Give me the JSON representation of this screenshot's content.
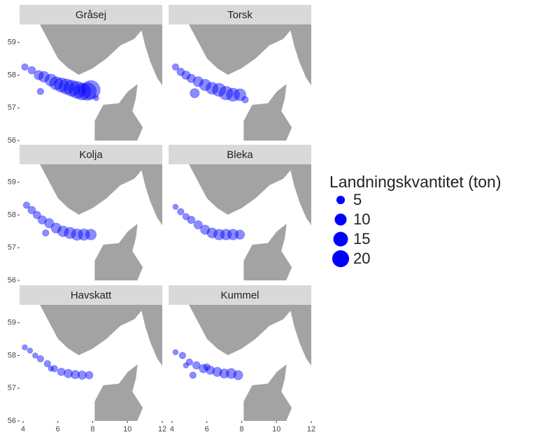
{
  "chart_data": [
    {
      "type": "scatter",
      "title": "Gråsej",
      "color": "#0000ff",
      "xlim": [
        3.8,
        12.0
      ],
      "ylim": [
        56,
        59.55
      ],
      "yticks": [
        56,
        57,
        58,
        59
      ],
      "x": [
        4.1,
        4.5,
        4.9,
        5.2,
        5.6,
        5.9,
        6.2,
        6.5,
        6.8,
        7.1,
        7.4,
        7.7,
        7.9,
        5.0,
        8.2
      ],
      "y": [
        58.25,
        58.15,
        58.0,
        57.95,
        57.85,
        57.75,
        57.7,
        57.65,
        57.6,
        57.55,
        57.5,
        57.5,
        57.55,
        57.5,
        57.3
      ],
      "sizes": [
        3,
        4,
        6,
        8,
        10,
        12,
        14,
        16,
        18,
        20,
        20,
        22,
        24,
        3,
        2
      ]
    },
    {
      "type": "scatter",
      "title": "Torsk",
      "color": "#0000ff",
      "xlim": [
        3.8,
        12.0
      ],
      "ylim": [
        56,
        59.55
      ],
      "x": [
        4.2,
        4.5,
        4.8,
        5.1,
        5.5,
        5.9,
        6.3,
        6.7,
        7.1,
        7.5,
        7.9,
        5.3,
        8.2
      ],
      "y": [
        58.25,
        58.1,
        58.0,
        57.9,
        57.8,
        57.7,
        57.6,
        57.55,
        57.45,
        57.4,
        57.4,
        57.45,
        57.25
      ],
      "sizes": [
        3,
        4,
        5,
        5,
        7,
        9,
        10,
        12,
        13,
        12,
        10,
        6,
        3
      ]
    },
    {
      "type": "scatter",
      "title": "Kolja",
      "color": "#0000ff",
      "xlim": [
        3.8,
        12.0
      ],
      "ylim": [
        56,
        59.55
      ],
      "yticks": [
        56,
        57,
        58,
        59
      ],
      "x": [
        4.2,
        4.5,
        4.8,
        5.1,
        5.5,
        5.9,
        6.3,
        6.7,
        7.1,
        7.5,
        7.9,
        5.3
      ],
      "y": [
        58.3,
        58.15,
        58.0,
        57.85,
        57.75,
        57.6,
        57.5,
        57.45,
        57.4,
        57.4,
        57.4,
        57.45
      ],
      "sizes": [
        3,
        4,
        4,
        5,
        6,
        7,
        8,
        9,
        9,
        9,
        8,
        3
      ]
    },
    {
      "type": "scatter",
      "title": "Bleka",
      "color": "#0000ff",
      "xlim": [
        3.8,
        12.0
      ],
      "ylim": [
        56,
        59.55
      ],
      "x": [
        4.2,
        4.5,
        4.8,
        5.1,
        5.5,
        5.9,
        6.3,
        6.7,
        7.1,
        7.5,
        7.9
      ],
      "y": [
        58.25,
        58.1,
        57.95,
        57.85,
        57.7,
        57.55,
        57.45,
        57.4,
        57.4,
        57.4,
        57.4
      ],
      "sizes": [
        2,
        3,
        3,
        4,
        5,
        6,
        7,
        8,
        8,
        8,
        6
      ]
    },
    {
      "type": "scatter",
      "title": "Havskatt",
      "color": "#0000ff",
      "xlim": [
        3.8,
        12.0
      ],
      "ylim": [
        56,
        59.55
      ],
      "xticks": [
        4,
        6,
        8,
        10,
        12
      ],
      "yticks": [
        56,
        57,
        58,
        59
      ],
      "x": [
        4.1,
        4.4,
        4.7,
        5.0,
        5.4,
        5.8,
        6.2,
        6.6,
        7.0,
        7.4,
        7.8,
        5.6
      ],
      "y": [
        58.25,
        58.15,
        58.0,
        57.9,
        57.75,
        57.6,
        57.5,
        57.45,
        57.42,
        57.4,
        57.4,
        57.6
      ],
      "sizes": [
        2,
        2,
        2,
        3,
        3,
        3,
        4,
        5,
        5,
        5,
        4,
        2
      ]
    },
    {
      "type": "scatter",
      "title": "Kummel",
      "color": "#0000ff",
      "xlim": [
        3.8,
        12.0
      ],
      "ylim": [
        56,
        59.55
      ],
      "xticks": [
        4,
        6,
        8,
        10,
        12
      ],
      "x": [
        4.2,
        4.6,
        5.0,
        5.4,
        5.8,
        6.2,
        6.6,
        7.0,
        7.4,
        7.8,
        5.2,
        6.0,
        4.8
      ],
      "y": [
        58.1,
        58.0,
        57.8,
        57.7,
        57.6,
        57.55,
        57.5,
        57.45,
        57.45,
        57.4,
        57.4,
        57.65,
        57.7
      ],
      "sizes": [
        2,
        3,
        3,
        4,
        5,
        5,
        6,
        6,
        7,
        6,
        3,
        3,
        2
      ]
    }
  ],
  "size_legend": {
    "title": "Landningskvantitet (ton)",
    "sizes": [
      5,
      10,
      15,
      20
    ]
  }
}
